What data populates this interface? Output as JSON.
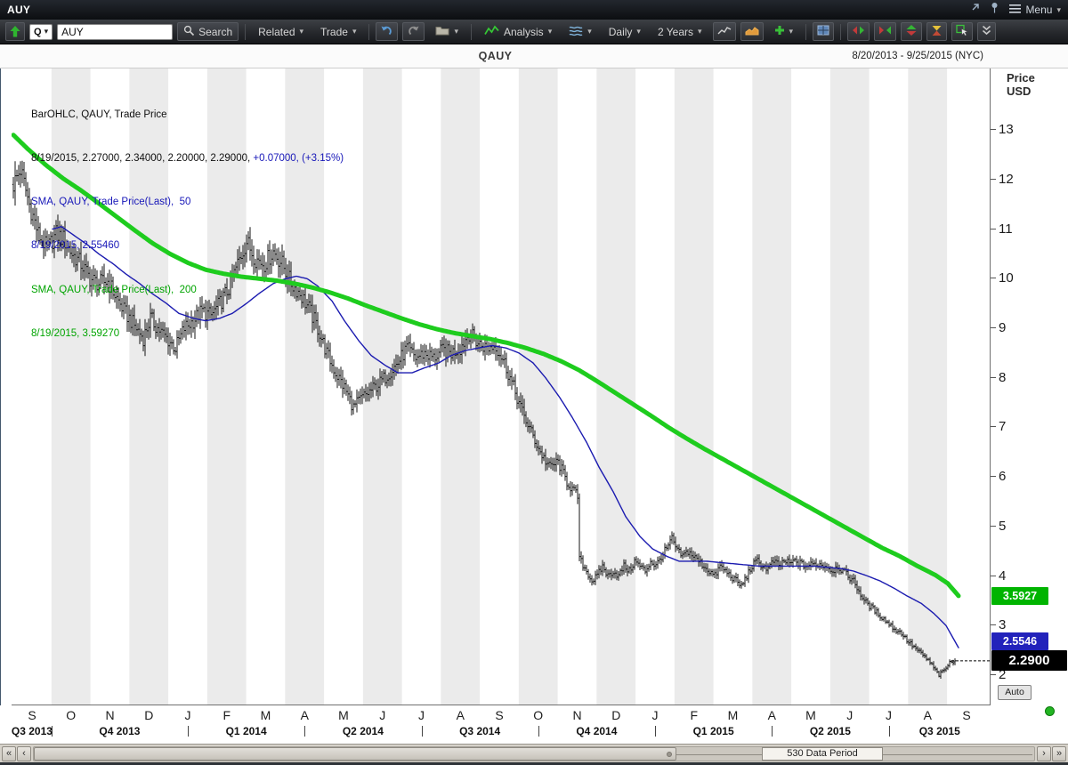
{
  "titlebar": {
    "title": "AUY",
    "menu_label": "Menu"
  },
  "toolbar": {
    "symbol_mode": "Q",
    "symbol_value": "AUY",
    "search_label": "Search",
    "related_label": "Related",
    "trade_label": "Trade",
    "analysis_label": "Analysis",
    "interval_label": "Daily",
    "range_label": "2 Years"
  },
  "header": {
    "title": "QAUY",
    "date_range": "8/20/2013 - 9/25/2015 (NYC)"
  },
  "axis": {
    "title_line1": "Price",
    "title_line2": "USD",
    "auto_label": "Auto"
  },
  "legend": {
    "line1": "BarOHLC, QAUY, Trade Price",
    "line2_black": "8/19/2015, 2.27000, 2.34000, 2.20000, 2.29000, ",
    "line2_blue": "+0.07000, (+3.15%)",
    "line3": "SMA, QAUY, Trade Price(Last),  50",
    "line4": "8/19/2015, 2.55460",
    "line5": "SMA, QAUY, Trade Price(Last),  200",
    "line6": "8/19/2015, 3.59270"
  },
  "flags": {
    "sma200": "3.5927",
    "sma50": "2.5546",
    "last": "2.2900"
  },
  "scrollbar": {
    "label": "530 Data Period"
  },
  "icons": {
    "caret": "▾",
    "scroll_far_left": "«",
    "scroll_left": "‹",
    "scroll_right": "›",
    "scroll_far_right": "»"
  },
  "colors": {
    "bars": "#151515",
    "sma50": "#1b1bb0",
    "sma200": "#1ecc1e",
    "flag_last_bg": "#000000",
    "flag_sma50_bg": "#2222bb",
    "flag_sma200_bg": "#00b400",
    "band": "#ebebeb"
  },
  "chart_data": {
    "type": "ohlc",
    "symbol": "QAUY",
    "interval": "Daily",
    "visible_range": "8/20/2013 - 9/25/2015",
    "bars_count": 530,
    "ylim": [
      1.39,
      14.24
    ],
    "yticks": [
      13,
      12,
      11,
      10,
      9,
      8,
      7,
      6,
      5,
      4,
      3,
      2
    ],
    "last_bar": {
      "date": "8/19/2015",
      "open": 2.27,
      "high": 2.34,
      "low": 2.2,
      "close": 2.29,
      "change": 0.07,
      "change_pct": 3.15
    },
    "sma50_last": 2.5546,
    "sma200_last": 3.5927,
    "x_months": [
      "S",
      "O",
      "N",
      "D",
      "J",
      "F",
      "M",
      "A",
      "M",
      "J",
      "J",
      "A",
      "S",
      "O",
      "N",
      "D",
      "J",
      "F",
      "M",
      "A",
      "M",
      "J",
      "J",
      "A",
      "S"
    ],
    "x_quarters": [
      "Q3 2013",
      "Q4 2013",
      "Q1 2014",
      "Q2 2014",
      "Q3 2014",
      "Q4 2014",
      "Q1 2015",
      "Q2 2015",
      "Q3 2015"
    ],
    "price_path": [
      [
        0,
        11.9
      ],
      [
        4,
        12.2
      ],
      [
        9,
        11.5
      ],
      [
        14,
        10.9
      ],
      [
        19,
        10.6
      ],
      [
        24,
        10.9
      ],
      [
        28,
        10.8
      ],
      [
        33,
        10.5
      ],
      [
        38,
        10.3
      ],
      [
        43,
        10.0
      ],
      [
        48,
        9.9
      ],
      [
        53,
        9.95
      ],
      [
        58,
        9.6
      ],
      [
        63,
        9.3
      ],
      [
        68,
        9.05
      ],
      [
        73,
        8.8
      ],
      [
        77,
        9.2
      ],
      [
        81,
        9.0
      ],
      [
        86,
        8.8
      ],
      [
        91,
        8.6
      ],
      [
        96,
        9.0
      ],
      [
        101,
        9.15
      ],
      [
        106,
        9.35
      ],
      [
        111,
        9.25
      ],
      [
        116,
        9.5
      ],
      [
        121,
        9.8
      ],
      [
        126,
        10.3
      ],
      [
        131,
        10.75
      ],
      [
        136,
        10.4
      ],
      [
        141,
        10.3
      ],
      [
        146,
        10.55
      ],
      [
        151,
        10.3
      ],
      [
        156,
        9.9
      ],
      [
        161,
        9.7
      ],
      [
        166,
        9.4
      ],
      [
        171,
        9.0
      ],
      [
        176,
        8.5
      ],
      [
        181,
        8.1
      ],
      [
        186,
        7.8
      ],
      [
        191,
        7.4
      ],
      [
        196,
        7.6
      ],
      [
        201,
        7.75
      ],
      [
        206,
        7.9
      ],
      [
        211,
        8.1
      ],
      [
        216,
        8.3
      ],
      [
        221,
        8.6
      ],
      [
        226,
        8.4
      ],
      [
        231,
        8.5
      ],
      [
        236,
        8.4
      ],
      [
        241,
        8.55
      ],
      [
        246,
        8.5
      ],
      [
        251,
        8.6
      ],
      [
        256,
        8.9
      ],
      [
        261,
        8.7
      ],
      [
        266,
        8.6
      ],
      [
        271,
        8.65
      ],
      [
        276,
        8.3
      ],
      [
        281,
        7.8
      ],
      [
        286,
        7.3
      ],
      [
        291,
        6.9
      ],
      [
        296,
        6.5
      ],
      [
        301,
        6.2
      ],
      [
        306,
        6.3
      ],
      [
        311,
        5.9
      ],
      [
        317,
        5.6
      ],
      [
        318,
        4.35
      ],
      [
        322,
        4.1
      ],
      [
        325,
        3.9
      ],
      [
        328,
        4.0
      ],
      [
        331,
        4.2
      ],
      [
        334,
        4.0
      ],
      [
        337,
        4.1
      ],
      [
        340,
        4.0
      ],
      [
        343,
        4.2
      ],
      [
        346,
        4.1
      ],
      [
        349,
        4.3
      ],
      [
        352,
        4.2
      ],
      [
        355,
        4.1
      ],
      [
        358,
        4.3
      ],
      [
        361,
        4.2
      ],
      [
        364,
        4.4
      ],
      [
        368,
        4.6
      ],
      [
        370,
        4.75
      ],
      [
        373,
        4.5
      ],
      [
        376,
        4.4
      ],
      [
        379,
        4.5
      ],
      [
        382,
        4.4
      ],
      [
        385,
        4.3
      ],
      [
        388,
        4.2
      ],
      [
        391,
        4.1
      ],
      [
        394,
        4.0
      ],
      [
        397,
        4.2
      ],
      [
        400,
        4.1
      ],
      [
        403,
        4.0
      ],
      [
        406,
        3.9
      ],
      [
        409,
        3.8
      ],
      [
        412,
        4.0
      ],
      [
        415,
        4.2
      ],
      [
        418,
        4.3
      ],
      [
        421,
        4.2
      ],
      [
        424,
        4.15
      ],
      [
        427,
        4.3
      ],
      [
        430,
        4.2
      ],
      [
        433,
        4.3
      ],
      [
        436,
        4.25
      ],
      [
        439,
        4.3
      ],
      [
        445,
        4.2
      ],
      [
        451,
        4.25
      ],
      [
        457,
        4.2
      ],
      [
        460,
        4.1
      ],
      [
        463,
        4.2
      ],
      [
        466,
        4.1
      ],
      [
        469,
        4.0
      ],
      [
        472,
        3.9
      ],
      [
        475,
        3.7
      ],
      [
        478,
        3.5
      ],
      [
        481,
        3.4
      ],
      [
        484,
        3.3
      ],
      [
        487,
        3.2
      ],
      [
        490,
        3.1
      ],
      [
        493,
        3.0
      ],
      [
        496,
        2.9
      ],
      [
        499,
        2.85
      ],
      [
        502,
        2.7
      ],
      [
        505,
        2.6
      ],
      [
        508,
        2.5
      ],
      [
        511,
        2.4
      ],
      [
        514,
        2.3
      ],
      [
        517,
        2.15
      ],
      [
        520,
        2.0
      ],
      [
        523,
        2.1
      ],
      [
        526,
        2.25
      ],
      [
        529,
        2.29
      ]
    ],
    "sma50_path": [
      [
        22,
        11.0
      ],
      [
        27,
        11.05
      ],
      [
        33,
        10.9
      ],
      [
        41,
        10.7
      ],
      [
        48,
        10.5
      ],
      [
        56,
        10.3
      ],
      [
        63,
        10.1
      ],
      [
        71,
        9.9
      ],
      [
        78,
        9.7
      ],
      [
        86,
        9.5
      ],
      [
        93,
        9.3
      ],
      [
        101,
        9.2
      ],
      [
        108,
        9.15
      ],
      [
        116,
        9.2
      ],
      [
        123,
        9.3
      ],
      [
        131,
        9.5
      ],
      [
        138,
        9.7
      ],
      [
        146,
        9.9
      ],
      [
        153,
        10.0
      ],
      [
        159,
        10.05
      ],
      [
        165,
        10.0
      ],
      [
        171,
        9.85
      ],
      [
        179,
        9.55
      ],
      [
        186,
        9.15
      ],
      [
        194,
        8.75
      ],
      [
        201,
        8.45
      ],
      [
        209,
        8.25
      ],
      [
        216,
        8.1
      ],
      [
        224,
        8.1
      ],
      [
        231,
        8.2
      ],
      [
        239,
        8.3
      ],
      [
        246,
        8.45
      ],
      [
        254,
        8.55
      ],
      [
        261,
        8.6
      ],
      [
        269,
        8.65
      ],
      [
        277,
        8.6
      ],
      [
        284,
        8.5
      ],
      [
        292,
        8.3
      ],
      [
        299,
        8.0
      ],
      [
        307,
        7.6
      ],
      [
        314,
        7.2
      ],
      [
        322,
        6.7
      ],
      [
        329,
        6.2
      ],
      [
        337,
        5.7
      ],
      [
        344,
        5.2
      ],
      [
        352,
        4.8
      ],
      [
        359,
        4.55
      ],
      [
        367,
        4.4
      ],
      [
        374,
        4.3
      ],
      [
        389,
        4.3
      ],
      [
        404,
        4.25
      ],
      [
        419,
        4.2
      ],
      [
        434,
        4.2
      ],
      [
        450,
        4.2
      ],
      [
        465,
        4.15
      ],
      [
        472,
        4.1
      ],
      [
        480,
        4.0
      ],
      [
        487,
        3.9
      ],
      [
        495,
        3.75
      ],
      [
        502,
        3.6
      ],
      [
        510,
        3.45
      ],
      [
        517,
        3.25
      ],
      [
        524,
        3.0
      ],
      [
        531,
        2.5546
      ]
    ],
    "sma200_path": [
      [
        0,
        12.9
      ],
      [
        8,
        12.62
      ],
      [
        18,
        12.3
      ],
      [
        28,
        12.02
      ],
      [
        38,
        11.78
      ],
      [
        48,
        11.52
      ],
      [
        58,
        11.25
      ],
      [
        68,
        10.98
      ],
      [
        78,
        10.72
      ],
      [
        88,
        10.5
      ],
      [
        98,
        10.32
      ],
      [
        108,
        10.18
      ],
      [
        118,
        10.1
      ],
      [
        128,
        10.04
      ],
      [
        138,
        10.0
      ],
      [
        148,
        9.96
      ],
      [
        158,
        9.9
      ],
      [
        168,
        9.82
      ],
      [
        178,
        9.72
      ],
      [
        188,
        9.6
      ],
      [
        198,
        9.46
      ],
      [
        208,
        9.33
      ],
      [
        218,
        9.2
      ],
      [
        228,
        9.08
      ],
      [
        238,
        8.98
      ],
      [
        248,
        8.9
      ],
      [
        258,
        8.84
      ],
      [
        268,
        8.78
      ],
      [
        278,
        8.7
      ],
      [
        288,
        8.6
      ],
      [
        298,
        8.48
      ],
      [
        308,
        8.33
      ],
      [
        318,
        8.15
      ],
      [
        328,
        7.93
      ],
      [
        338,
        7.7
      ],
      [
        348,
        7.47
      ],
      [
        358,
        7.24
      ],
      [
        368,
        7.0
      ],
      [
        378,
        6.78
      ],
      [
        388,
        6.57
      ],
      [
        398,
        6.37
      ],
      [
        408,
        6.17
      ],
      [
        418,
        5.97
      ],
      [
        428,
        5.77
      ],
      [
        438,
        5.57
      ],
      [
        448,
        5.37
      ],
      [
        458,
        5.17
      ],
      [
        468,
        4.97
      ],
      [
        478,
        4.77
      ],
      [
        488,
        4.57
      ],
      [
        498,
        4.4
      ],
      [
        508,
        4.2
      ],
      [
        518,
        4.02
      ],
      [
        525,
        3.85
      ],
      [
        531,
        3.6
      ]
    ]
  }
}
